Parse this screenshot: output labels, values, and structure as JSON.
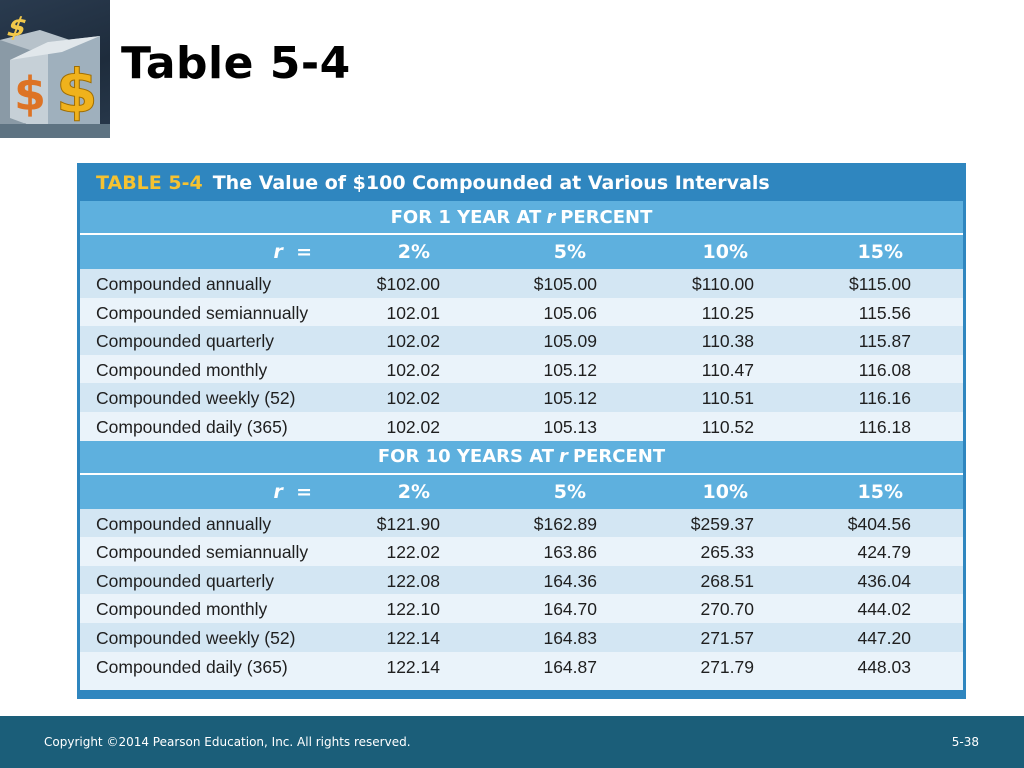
{
  "slide": {
    "title": "Table 5-4"
  },
  "table": {
    "label": "TABLE 5-4",
    "title": "The Value of $100 Compounded at Various Intervals",
    "colors": {
      "frame": "#2f86bf",
      "header": "#5eb0de",
      "label_accent": "#f5c231",
      "row_odd": "#d3e6f3",
      "row_even": "#eaf3fa"
    },
    "sections": [
      {
        "heading_prefix": "FOR 1 YEAR AT",
        "heading_var": "r",
        "heading_suffix": "PERCENT",
        "rate_var": "r",
        "rate_eq": "=",
        "rates": [
          "2%",
          "5%",
          "10%",
          "15%"
        ],
        "rows": [
          {
            "label": "Compounded annually",
            "values": [
              "$102.00",
              "$105.00",
              "$110.00",
              "$115.00"
            ]
          },
          {
            "label": "Compounded semiannually",
            "values": [
              "102.01",
              "105.06",
              "110.25",
              "115.56"
            ]
          },
          {
            "label": "Compounded quarterly",
            "values": [
              "102.02",
              "105.09",
              "110.38",
              "115.87"
            ]
          },
          {
            "label": "Compounded monthly",
            "values": [
              "102.02",
              "105.12",
              "110.47",
              "116.08"
            ]
          },
          {
            "label": "Compounded weekly (52)",
            "values": [
              "102.02",
              "105.12",
              "110.51",
              "116.16"
            ]
          },
          {
            "label": "Compounded daily (365)",
            "values": [
              "102.02",
              "105.13",
              "110.52",
              "116.18"
            ]
          }
        ]
      },
      {
        "heading_prefix": "FOR 10 YEARS AT",
        "heading_var": "r",
        "heading_suffix": "PERCENT",
        "rate_var": "r",
        "rate_eq": "=",
        "rates": [
          "2%",
          "5%",
          "10%",
          "15%"
        ],
        "rows": [
          {
            "label": "Compounded annually",
            "values": [
              "$121.90",
              "$162.89",
              "$259.37",
              "$404.56"
            ]
          },
          {
            "label": "Compounded semiannually",
            "values": [
              "122.02",
              "163.86",
              "265.33",
              "424.79"
            ]
          },
          {
            "label": "Compounded quarterly",
            "values": [
              "122.08",
              "164.36",
              "268.51",
              "436.04"
            ]
          },
          {
            "label": "Compounded monthly",
            "values": [
              "122.10",
              "164.70",
              "270.70",
              "444.02"
            ]
          },
          {
            "label": "Compounded weekly (52)",
            "values": [
              "122.14",
              "164.83",
              "271.57",
              "447.20"
            ]
          },
          {
            "label": "Compounded daily (365)",
            "values": [
              "122.14",
              "164.87",
              "271.79",
              "448.03"
            ]
          }
        ]
      }
    ]
  },
  "footer": {
    "copyright": "Copyright ©2014 Pearson Education, Inc. All rights reserved.",
    "page": "5-38"
  },
  "logo": {
    "icon": "dollar-cube-icon",
    "glyph": "$"
  }
}
